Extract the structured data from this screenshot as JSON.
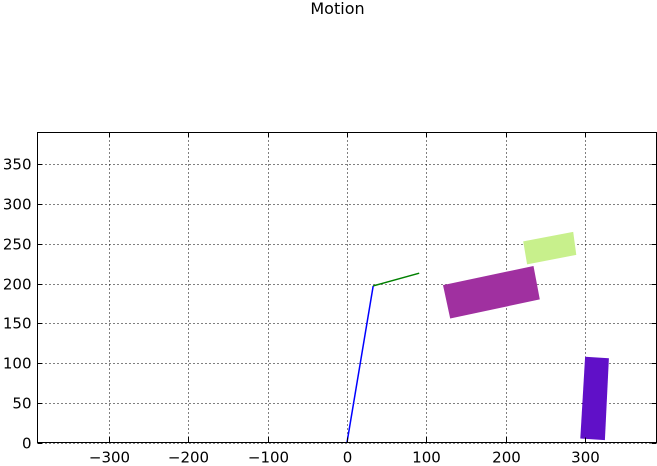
{
  "chart_data": {
    "type": "scatter",
    "title": "Motion",
    "xlabel": "",
    "ylabel": "",
    "xlim": [
      -390,
      390
    ],
    "ylim": [
      0,
      390
    ],
    "x_ticks": [
      -300,
      -200,
      -100,
      0,
      100,
      200,
      300
    ],
    "x_tick_labels": [
      "−300",
      "−200",
      "−100",
      "0",
      "100",
      "200",
      "300"
    ],
    "y_ticks": [
      0,
      50,
      100,
      150,
      200,
      250,
      300,
      350
    ],
    "y_tick_labels": [
      "0",
      "50",
      "100",
      "150",
      "200",
      "250",
      "300",
      "350"
    ],
    "grid": true,
    "arm_segments": [
      {
        "name": "link-1",
        "color": "#0000ff",
        "points": [
          [
            0,
            0
          ],
          [
            33,
            197
          ]
        ]
      },
      {
        "name": "link-2",
        "color": "#008000",
        "points": [
          [
            33,
            197
          ],
          [
            91,
            213
          ]
        ]
      }
    ],
    "rectangles": [
      {
        "name": "rect-light-green",
        "color": "#c8f08c",
        "corners": [
          [
            222,
            253
          ],
          [
            285,
            265
          ],
          [
            289,
            236
          ],
          [
            227,
            224
          ]
        ]
      },
      {
        "name": "rect-magenta",
        "color": "#a030a0",
        "corners": [
          [
            121,
            198
          ],
          [
            235,
            222
          ],
          [
            243,
            180
          ],
          [
            130,
            156
          ]
        ]
      },
      {
        "name": "rect-purple",
        "color": "#6010c8",
        "corners": [
          [
            300,
            108
          ],
          [
            330,
            106
          ],
          [
            325,
            3
          ],
          [
            294,
            5
          ]
        ]
      }
    ]
  }
}
